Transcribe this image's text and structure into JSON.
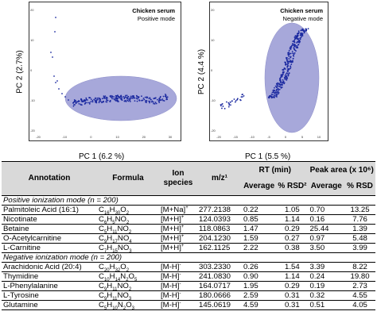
{
  "left_plot": {
    "title": "Chicken serum",
    "mode": "Positive mode",
    "xlabel": "PC 1 (6.2 %)",
    "ylabel": "PC 2 (2.7%)",
    "xticks": [
      "-20",
      "-10",
      "0",
      "10",
      "20",
      "30"
    ],
    "yticks": [
      "-20",
      "-10",
      "0",
      "10",
      "20"
    ]
  },
  "right_plot": {
    "title": "Chicken serum",
    "mode": "Negative mode",
    "xlabel": "PC 1 (5.5 %)",
    "ylabel": "PC 2 (4.4 %)",
    "xticks": [
      "-20",
      "-15",
      "-10",
      "-5",
      "0",
      "5",
      "10"
    ],
    "yticks": [
      "-20",
      "-10",
      "0",
      "10",
      "20"
    ]
  },
  "colors": {
    "ellipse_fill": "#a7a8da",
    "points": "#1c2aa0",
    "header_gray": "#d9d9d9"
  },
  "table": {
    "headers": {
      "annotation": "Annotation",
      "formula": "Formula",
      "ion_species": "Ion species",
      "mz": "m/z¹",
      "rt": "RT (min)",
      "peak_area": "Peak area (x 10⁶)",
      "average": "Average",
      "rsd_rt": "% RSD²",
      "average2": "Average",
      "rsd_pa": "% RSD"
    },
    "positive_section": "Positive ionization mode (n = 200)",
    "negative_section": "Negative ionization mode (n = 200)",
    "positive_rows": [
      {
        "annotation": "Palmitoleic Acid (16:1)",
        "formula": "C16H30O2",
        "ion": "[M+Na]+",
        "mz": "277.2138",
        "rt_avg": "0.22",
        "rt_rsd": "1.05",
        "pa_avg": "0.70",
        "pa_rsd": "13.25"
      },
      {
        "annotation": "Nicotinate",
        "formula": "C6H5NO2",
        "ion": "[M+H]+",
        "mz": "124.0393",
        "rt_avg": "0.85",
        "rt_rsd": "1.14",
        "pa_avg": "0.16",
        "pa_rsd": "7.76"
      },
      {
        "annotation": "Betaine",
        "formula": "C5H11NO2",
        "ion": "[M+H]+",
        "mz": "118.0863",
        "rt_avg": "1.47",
        "rt_rsd": "0.29",
        "pa_avg": "25.44",
        "pa_rsd": "1.39"
      },
      {
        "annotation": "O-Acetylcarnitine",
        "formula": "C9H17NO4",
        "ion": "[M+H]+",
        "mz": "204.1230",
        "rt_avg": "1.59",
        "rt_rsd": "0.27",
        "pa_avg": "0.97",
        "pa_rsd": "5.48"
      },
      {
        "annotation": "L-Carnitine",
        "formula": "C7H15NO3",
        "ion": "[M+H]+",
        "mz": "162.1125",
        "rt_avg": "2.22",
        "rt_rsd": "0.38",
        "pa_avg": "3.50",
        "pa_rsd": "3.99"
      }
    ],
    "negative_rows": [
      {
        "annotation": "Arachidonic Acid (20:4)",
        "formula": "C20H32O2",
        "ion": "[M-H]-",
        "mz": "303.2330",
        "rt_avg": "0.26",
        "rt_rsd": "1.54",
        "pa_avg": "3.39",
        "pa_rsd": "8.22"
      },
      {
        "annotation": "Thymidine",
        "formula": "C10H14N2O5",
        "ion": "[M-H]-",
        "mz": "241.0830",
        "rt_avg": "0.90",
        "rt_rsd": "1.14",
        "pa_avg": "0.24",
        "pa_rsd": "19.80"
      },
      {
        "annotation": "L-Phenylalanine",
        "formula": "C9H11NO2",
        "ion": "[M-H]-",
        "mz": "164.0717",
        "rt_avg": "1.95",
        "rt_rsd": "0.29",
        "pa_avg": "0.19",
        "pa_rsd": "2.73"
      },
      {
        "annotation": "L-Tyrosine",
        "formula": "C9H11NO3",
        "ion": "[M-H]-",
        "mz": "180.0666",
        "rt_avg": "2.59",
        "rt_rsd": "0.31",
        "pa_avg": "0.32",
        "pa_rsd": "4.55"
      },
      {
        "annotation": "Glutamine",
        "formula": "C5H10N2O3",
        "ion": "[M-H]-",
        "mz": "145.0619",
        "rt_avg": "4.59",
        "rt_rsd": "0.31",
        "pa_avg": "0.51",
        "pa_rsd": "4.05"
      }
    ]
  }
}
